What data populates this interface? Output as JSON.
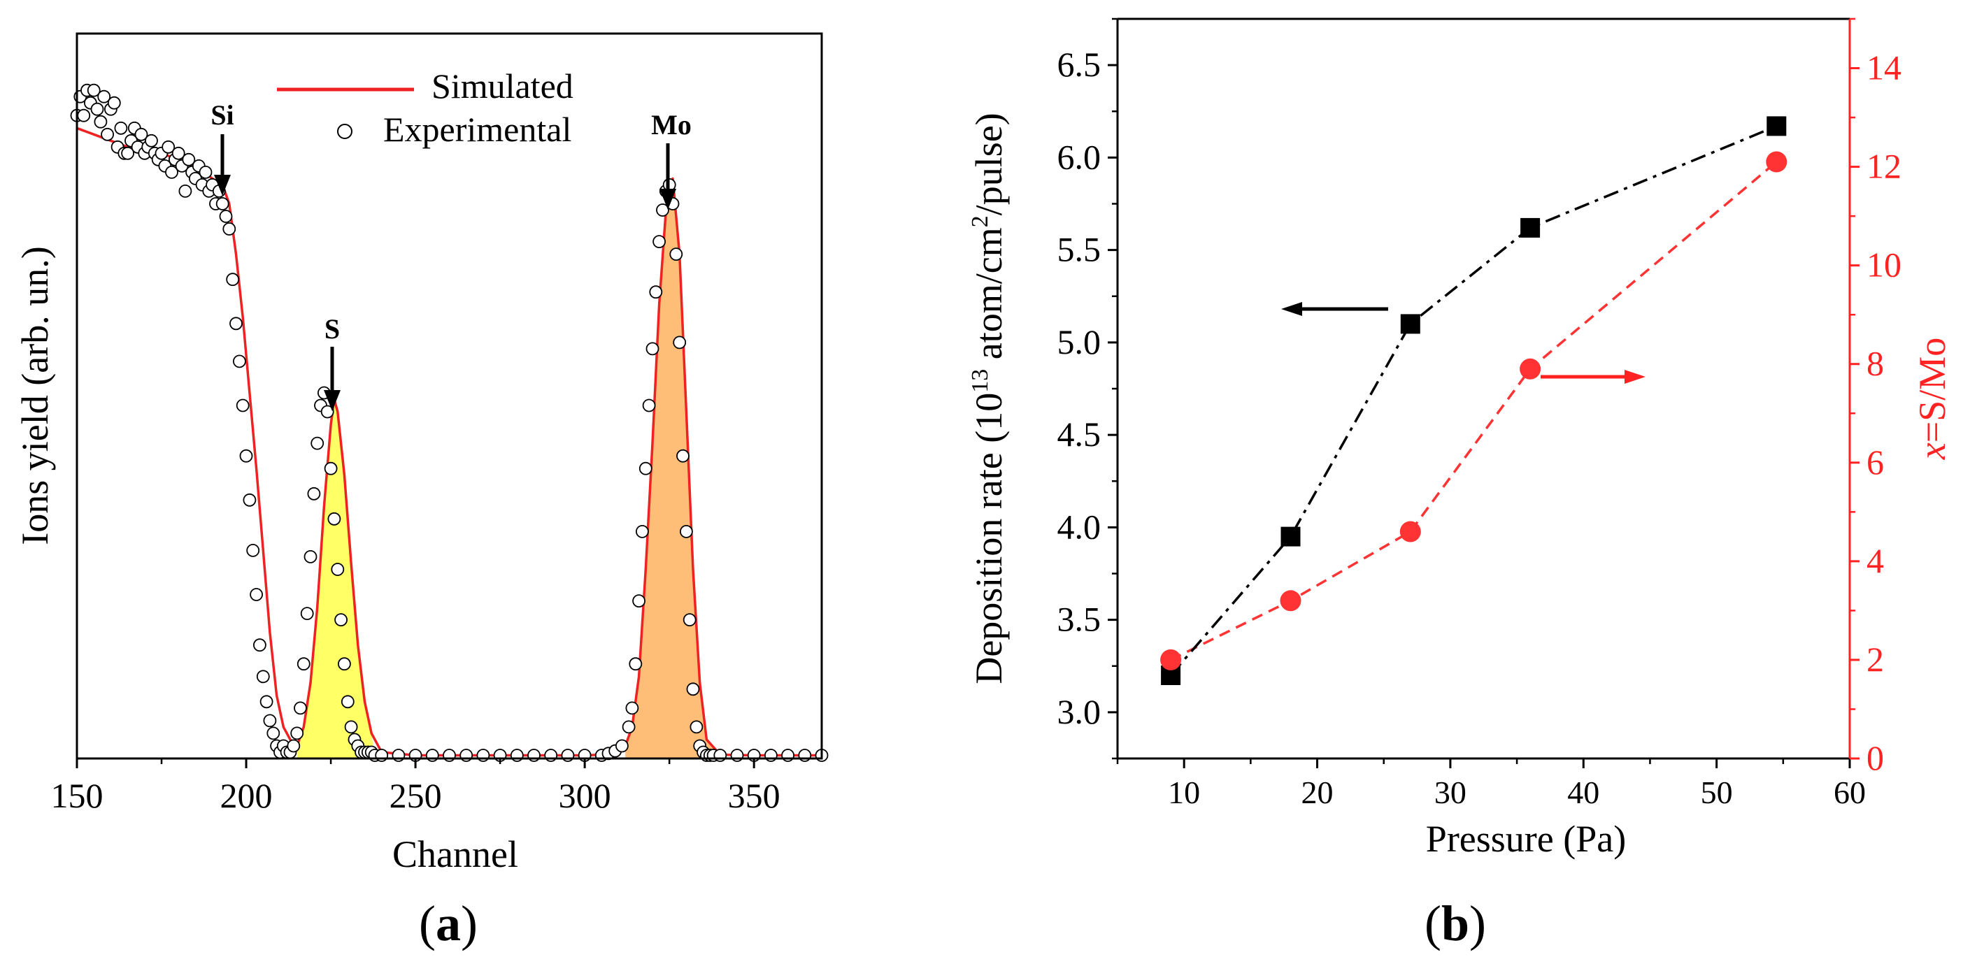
{
  "chart_data": [
    {
      "panel": "(a)",
      "panel_letter": "a",
      "type": "line",
      "xlabel": "Channel",
      "ylabel": "Ions yield (arb. un.)",
      "xlim": [
        150,
        370
      ],
      "ylim": [
        0,
        1.15
      ],
      "xticks": [
        150,
        200,
        250,
        300,
        350
      ],
      "legend": {
        "position": "top",
        "entries": [
          "Simulated",
          "Experimental"
        ]
      },
      "series": [
        {
          "name": "Simulated",
          "style": "solid-red-line",
          "x": [
            150,
            155,
            160,
            165,
            170,
            175,
            180,
            185,
            190,
            193,
            195,
            197,
            199,
            201,
            203,
            205,
            207,
            209,
            211,
            213,
            215,
            217,
            219,
            221,
            223,
            225,
            226,
            227,
            229,
            231,
            233,
            235,
            237,
            240,
            250,
            260,
            270,
            280,
            290,
            300,
            305,
            310,
            312,
            314,
            316,
            318,
            320,
            322,
            324,
            326,
            328,
            330,
            332,
            334,
            336,
            340,
            350,
            360,
            370
          ],
          "y": [
            1.0,
            0.99,
            0.98,
            0.97,
            0.965,
            0.96,
            0.95,
            0.94,
            0.92,
            0.91,
            0.88,
            0.8,
            0.7,
            0.58,
            0.46,
            0.33,
            0.2,
            0.1,
            0.05,
            0.03,
            0.02,
            0.05,
            0.12,
            0.24,
            0.4,
            0.53,
            0.57,
            0.55,
            0.45,
            0.31,
            0.18,
            0.09,
            0.04,
            0.01,
            0.005,
            0.005,
            0.005,
            0.005,
            0.005,
            0.005,
            0.006,
            0.01,
            0.02,
            0.05,
            0.13,
            0.3,
            0.5,
            0.72,
            0.87,
            0.92,
            0.8,
            0.55,
            0.3,
            0.12,
            0.03,
            0.006,
            0.005,
            0.005,
            0.005
          ]
        },
        {
          "name": "Experimental",
          "style": "open-circle",
          "x": [
            150,
            151,
            152,
            153,
            154,
            155,
            156,
            157,
            158,
            159,
            160,
            161,
            162,
            163,
            164,
            165,
            166,
            167,
            168,
            169,
            170,
            171,
            172,
            173,
            174,
            175,
            176,
            177,
            178,
            179,
            180,
            181,
            182,
            183,
            184,
            185,
            186,
            187,
            188,
            189,
            190,
            191,
            192,
            193,
            194,
            195,
            196,
            197,
            198,
            199,
            200,
            201,
            202,
            203,
            204,
            205,
            206,
            207,
            208,
            209,
            210,
            211,
            212,
            213,
            214,
            215,
            216,
            217,
            218,
            219,
            220,
            221,
            222,
            223,
            224,
            225,
            226,
            227,
            228,
            229,
            230,
            231,
            232,
            233,
            234,
            235,
            236,
            237,
            238,
            240,
            245,
            250,
            255,
            260,
            265,
            270,
            275,
            280,
            285,
            290,
            295,
            300,
            305,
            307,
            309,
            311,
            313,
            314,
            315,
            316,
            317,
            318,
            319,
            320,
            321,
            322,
            323,
            324,
            325,
            326,
            327,
            328,
            329,
            330,
            331,
            332,
            333,
            334,
            335,
            336,
            337,
            338,
            340,
            345,
            350,
            355,
            360,
            365,
            370
          ],
          "y": [
            1.02,
            1.05,
            1.02,
            1.06,
            1.04,
            1.06,
            1.03,
            1.01,
            1.05,
            0.99,
            1.03,
            1.04,
            0.97,
            1.0,
            0.96,
            0.96,
            0.98,
            1.0,
            0.97,
            0.99,
            0.96,
            0.97,
            0.98,
            0.96,
            0.95,
            0.96,
            0.94,
            0.97,
            0.93,
            0.95,
            0.96,
            0.94,
            0.9,
            0.95,
            0.93,
            0.92,
            0.94,
            0.91,
            0.93,
            0.9,
            0.91,
            0.88,
            0.9,
            0.88,
            0.86,
            0.84,
            0.76,
            0.69,
            0.63,
            0.56,
            0.48,
            0.41,
            0.33,
            0.26,
            0.18,
            0.13,
            0.09,
            0.06,
            0.04,
            0.02,
            0.01,
            0.02,
            0.01,
            0.01,
            0.02,
            0.04,
            0.08,
            0.15,
            0.23,
            0.32,
            0.42,
            0.5,
            0.56,
            0.58,
            0.55,
            0.46,
            0.38,
            0.3,
            0.22,
            0.15,
            0.09,
            0.05,
            0.03,
            0.02,
            0.01,
            0.01,
            0.01,
            0.01,
            0.005,
            0.005,
            0.005,
            0.005,
            0.005,
            0.005,
            0.005,
            0.005,
            0.005,
            0.005,
            0.005,
            0.005,
            0.005,
            0.005,
            0.005,
            0.008,
            0.012,
            0.02,
            0.05,
            0.08,
            0.15,
            0.25,
            0.36,
            0.46,
            0.56,
            0.65,
            0.74,
            0.82,
            0.87,
            0.9,
            0.91,
            0.88,
            0.8,
            0.66,
            0.48,
            0.36,
            0.22,
            0.11,
            0.05,
            0.02,
            0.01,
            0.005,
            0.005,
            0.005,
            0.005,
            0.005,
            0.005,
            0.005,
            0.005,
            0.005,
            0.005
          ]
        }
      ],
      "annotations": [
        {
          "label": "Si",
          "x": 194,
          "y": 0.92
        },
        {
          "label": "S",
          "x": 226,
          "y": 0.58
        },
        {
          "label": "Mo",
          "x": 325,
          "y": 0.91
        }
      ]
    },
    {
      "panel": "(b)",
      "panel_letter": "b",
      "type": "scatter",
      "xlabel": "Pressure (Pa)",
      "ylabel_left": "Deposition rate (10",
      "ylabel_left_sup1": "13",
      "ylabel_left_mid": " atom/cm",
      "ylabel_left_sup2": "2",
      "ylabel_left_end": "/pulse)",
      "ylabel_right_italic": "x",
      "ylabel_right": "=S/Mo",
      "xlim": [
        5,
        60
      ],
      "xticks": [
        10,
        20,
        30,
        40,
        50,
        60
      ],
      "ylim_left": [
        2.75,
        6.75
      ],
      "yticks_left": [
        "3.0",
        "3.5",
        "4.0",
        "4.5",
        "5.0",
        "5.5",
        "6.0",
        "6.5"
      ],
      "ylim_right": [
        0,
        15
      ],
      "yticks_right": [
        "0",
        "2",
        "4",
        "6",
        "8",
        "10",
        "12",
        "14"
      ],
      "series": [
        {
          "name": "Deposition rate",
          "axis": "left",
          "marker": "square",
          "line": "dash-dot",
          "color": "#000000",
          "x": [
            9,
            18,
            27,
            36,
            54.5
          ],
          "y": [
            3.2,
            3.95,
            5.1,
            5.62,
            6.17
          ]
        },
        {
          "name": "x=S/Mo",
          "axis": "right",
          "marker": "circle",
          "line": "dashed",
          "color": "#ff3333",
          "x": [
            9,
            18,
            27,
            36,
            54.5
          ],
          "y": [
            2.0,
            3.2,
            4.6,
            7.9,
            12.1
          ]
        }
      ],
      "arrows": [
        {
          "points_to": "left",
          "color": "#000000"
        },
        {
          "points_to": "right",
          "color": "#ff2222"
        }
      ]
    }
  ],
  "colors": {
    "sim_line": "#ee2222",
    "s_fill": "#ffff66",
    "mo_fill": "#ffbe78",
    "right_axis": "#ff2222"
  }
}
